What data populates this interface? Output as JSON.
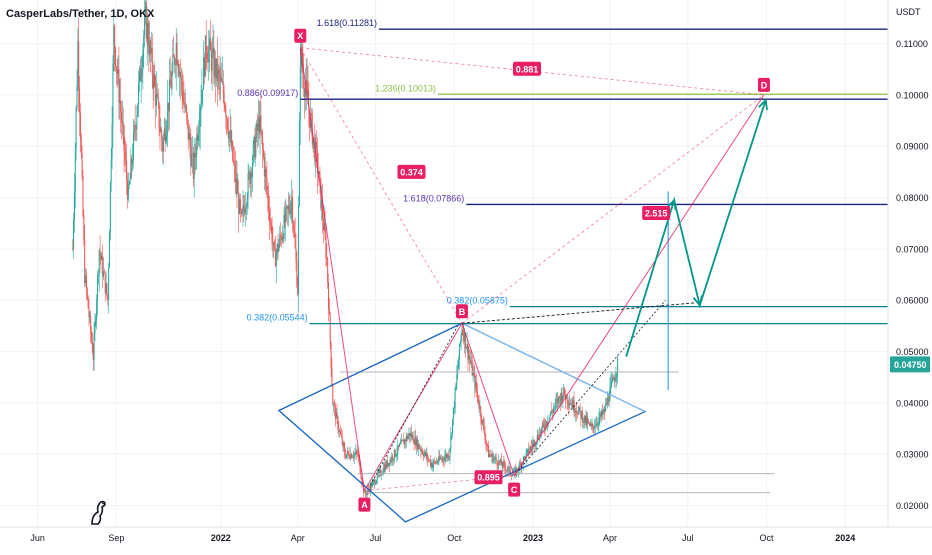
{
  "header": {
    "title": "CasperLabs/Tether, 1D, OKX"
  },
  "axis": {
    "currency": "USDT",
    "current_price": "0.04750"
  },
  "colors": {
    "up": "#26a69a",
    "down": "#ef5350",
    "pattern": "#e91e63",
    "fib_dark": "#1a237e",
    "fib_green": "#8bc34a",
    "fib_teal": "#00838f",
    "diamond": "#1565c0",
    "projection": "#009688",
    "price_badge": "#26a69a"
  },
  "chart_data": {
    "type": "candlestick",
    "title": "CasperLabs/Tether, 1D, OKX",
    "ylabel": "USDT",
    "ylim": [
      0.0158,
      0.1185
    ],
    "y_ticks": [
      "0.02000",
      "0.03000",
      "0.04000",
      "0.05000",
      "0.06000",
      "0.07000",
      "0.08000",
      "0.09000",
      "0.10000",
      "0.11000"
    ],
    "y_tick_values": [
      0.02,
      0.03,
      0.04,
      0.05,
      0.06,
      0.07,
      0.08,
      0.09,
      0.1,
      0.11
    ],
    "x_ticks": [
      "Jun",
      "Sep",
      "2022",
      "Apr",
      "Jul",
      "Oct",
      "2023",
      "Apr",
      "Jul",
      "Oct",
      "2024"
    ],
    "x_tick_dates": [
      "2021-06-01",
      "2021-09-01",
      "2022-01-01",
      "2022-04-01",
      "2022-07-01",
      "2022-10-01",
      "2023-01-01",
      "2023-04-01",
      "2023-07-01",
      "2023-10-01",
      "2024-01-01"
    ],
    "x_range": [
      "2021-04-18",
      "2024-02-20"
    ],
    "last_price": 0.0475,
    "price_path": [
      [
        "2021-07-12",
        0.07
      ],
      [
        "2021-07-18",
        0.11
      ],
      [
        "2021-07-26",
        0.065
      ],
      [
        "2021-08-05",
        0.049
      ],
      [
        "2021-08-12",
        0.07
      ],
      [
        "2021-08-22",
        0.06
      ],
      [
        "2021-08-29",
        0.112
      ],
      [
        "2021-09-15",
        0.08
      ],
      [
        "2021-10-05",
        0.115
      ],
      [
        "2021-10-25",
        0.09
      ],
      [
        "2021-11-10",
        0.11
      ],
      [
        "2021-11-30",
        0.085
      ],
      [
        "2021-12-15",
        0.11
      ],
      [
        "2022-01-05",
        0.1
      ],
      [
        "2022-01-25",
        0.075
      ],
      [
        "2022-02-15",
        0.095
      ],
      [
        "2022-03-05",
        0.068
      ],
      [
        "2022-03-25",
        0.08
      ],
      [
        "2022-04-01",
        0.062
      ],
      [
        "2022-04-04",
        0.108
      ],
      [
        "2022-04-25",
        0.085
      ],
      [
        "2022-05-05",
        0.068
      ],
      [
        "2022-05-12",
        0.04
      ],
      [
        "2022-05-26",
        0.03
      ],
      [
        "2022-06-10",
        0.03
      ],
      [
        "2022-06-18",
        0.022
      ],
      [
        "2022-07-05",
        0.026
      ],
      [
        "2022-08-10",
        0.034
      ],
      [
        "2022-09-05",
        0.028
      ],
      [
        "2022-09-25",
        0.03
      ],
      [
        "2022-10-10",
        0.055
      ],
      [
        "2022-10-25",
        0.044
      ],
      [
        "2022-11-10",
        0.03
      ],
      [
        "2022-11-25",
        0.028
      ],
      [
        "2022-12-10",
        0.026
      ],
      [
        "2023-01-05",
        0.033
      ],
      [
        "2023-02-05",
        0.042
      ],
      [
        "2023-02-20",
        0.039
      ],
      [
        "2023-03-10",
        0.035
      ],
      [
        "2023-03-25",
        0.038
      ],
      [
        "2023-04-10",
        0.0475
      ]
    ],
    "pattern_points": [
      {
        "label": "X",
        "date": "2022-04-04",
        "price": 0.1092
      },
      {
        "label": "A",
        "date": "2022-06-18",
        "price": 0.0229
      },
      {
        "label": "B",
        "date": "2022-10-10",
        "price": 0.0555
      },
      {
        "label": "C",
        "date": "2022-12-10",
        "price": 0.0258
      },
      {
        "label": "D",
        "date": "2023-09-28",
        "price": 0.1
      }
    ],
    "pattern_ratios": [
      {
        "label": "0.374",
        "date": "2022-08-12",
        "price": 0.085
      },
      {
        "label": "0.895",
        "date": "2022-11-10",
        "price": 0.0255
      },
      {
        "label": "2.515",
        "date": "2023-05-25",
        "price": 0.077
      },
      {
        "label": "0.881",
        "date": "2022-12-25",
        "price": 0.1051
      }
    ],
    "fib_levels": [
      {
        "label": "1.618(0.11281)",
        "value": 0.11281,
        "from": "2022-07-05",
        "to": "2024-02-20",
        "color": "#1a237e",
        "text_color": "#1a237e"
      },
      {
        "label": "1.236(0.10013)",
        "value": 0.10013,
        "from": "2022-09-12",
        "to": "2024-02-20",
        "color": "#8bc34a",
        "text_color": "#8bc34a"
      },
      {
        "label": "0.886(0.09917)",
        "value": 0.09917,
        "from": "2022-04-04",
        "to": "2024-02-20",
        "color": "#1a237e",
        "text_color": "#5e35b1"
      },
      {
        "label": "1.618(0.07866)",
        "value": 0.07866,
        "from": "2022-10-15",
        "to": "2024-02-20",
        "color": "#1a237e",
        "text_color": "#5e35b1"
      },
      {
        "label": "0.382(0.05875)",
        "value": 0.05875,
        "from": "2022-12-05",
        "to": "2024-02-20",
        "color": "#00838f",
        "text_color": "#2196f3"
      },
      {
        "label": "0.382(0.05544)",
        "value": 0.05544,
        "from": "2022-04-15",
        "to": "2024-02-20",
        "color": "#00838f",
        "text_color": "#2196f3"
      }
    ],
    "diamond": [
      [
        "2022-03-10",
        0.0385
      ],
      [
        "2022-10-10",
        0.0555
      ],
      [
        "2023-05-12",
        0.0383
      ],
      [
        "2022-08-05",
        0.0168
      ]
    ],
    "support_lines": [
      {
        "from": "2022-05-20",
        "to": "2023-06-20",
        "value": 0.046
      },
      {
        "from": "2022-06-10",
        "to": "2023-10-10",
        "value": 0.0262
      },
      {
        "from": "2022-06-20",
        "to": "2023-10-05",
        "value": 0.0225
      }
    ],
    "projection": [
      [
        "2023-04-20",
        0.049
      ],
      [
        "2023-06-15",
        0.0795
      ],
      [
        "2023-07-15",
        0.059
      ],
      [
        "2023-09-30",
        0.099
      ]
    ],
    "forecast_line": {
      "from": "2022-10-10",
      "to": "2023-07-10",
      "start": 0.0555,
      "end": 0.0595
    }
  }
}
